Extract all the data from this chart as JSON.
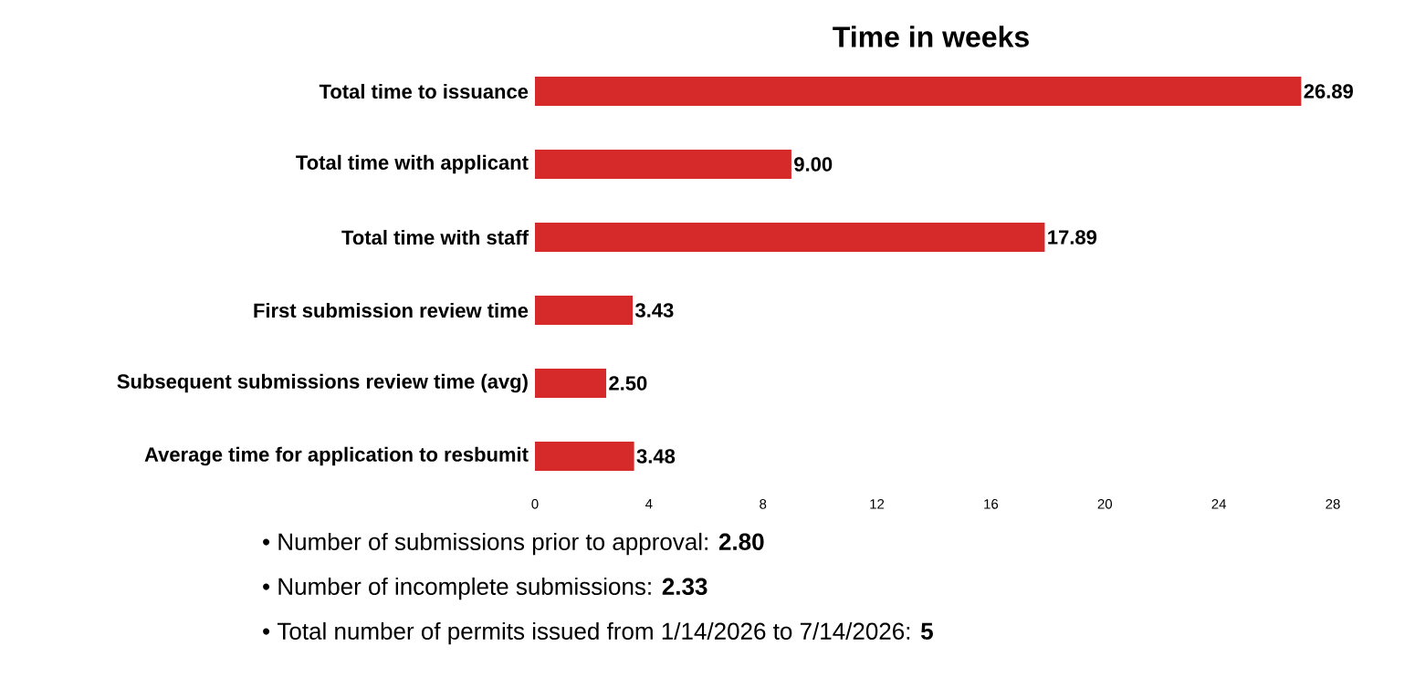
{
  "chart_data": {
    "type": "bar",
    "orientation": "horizontal",
    "title": "Time in weeks",
    "categories": [
      "Total time to issuance",
      "Total time with applicant",
      "Total time with staff",
      "First submission review time",
      "Subsequent submissions review time (avg)",
      "Average time for application to resbumit"
    ],
    "values": [
      26.89,
      9.0,
      17.89,
      3.43,
      2.5,
      3.48
    ],
    "color": "#d62a2a",
    "xlim": [
      0,
      28
    ],
    "xticks": [
      0,
      4,
      8,
      12,
      16,
      20,
      24,
      28
    ],
    "value_labels": [
      "26.89",
      "9.00",
      "17.89",
      "3.43",
      "2.50",
      "3.48"
    ],
    "annotations": [
      "• Number of submissions prior to approval: **2.80**",
      "• Number of incomplete submissions:  **2.33**",
      "• Total number of permits issued from 1/14/2026 to 7/14/2026: **5**"
    ]
  }
}
